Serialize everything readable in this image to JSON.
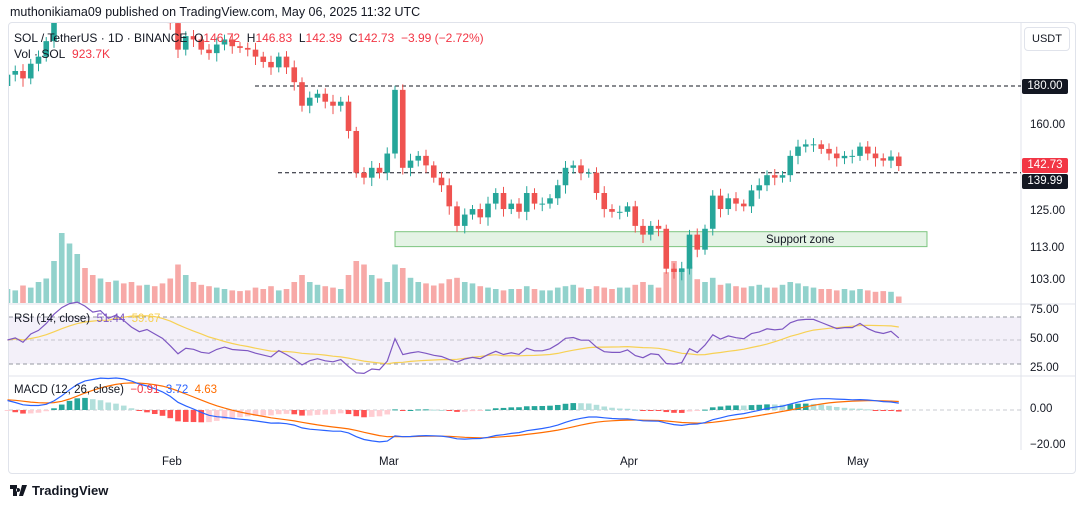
{
  "header": {
    "published": "muthonikiama09 published on TradingView.com, May 06, 2025 11:32 UTC"
  },
  "legend": {
    "symbol": "SOL / TetherUS · 1D · BINANCE",
    "o_label": "O",
    "o": "146.72",
    "h_label": "H",
    "h": "146.83",
    "l_label": "L",
    "l": "142.39",
    "c_label": "C",
    "c": "142.73",
    "change": "−3.99 (−2.72%)",
    "vol_label": "Vol · SOL",
    "vol": "923.7K"
  },
  "currency": "USDT",
  "price_axis": [
    "180.00",
    "160.00",
    "125.00",
    "113.00",
    "103.00"
  ],
  "price_tags": {
    "last": "142.73",
    "level": "139.99",
    "resistance": "180.00"
  },
  "annotation": {
    "support_label": "Support zone"
  },
  "rsi": {
    "label": "RSI (14, close)",
    "value": "51.44",
    "ma": "59.67",
    "axis": [
      "75.00",
      "50.00",
      "25.00"
    ]
  },
  "macd": {
    "label": "MACD (12, 26, close)",
    "hist": "−0.91",
    "macd": "3.72",
    "signal": "4.63",
    "axis": [
      "0.00",
      "−20.00"
    ]
  },
  "time_axis": [
    "Feb",
    "Mar",
    "Apr",
    "May"
  ],
  "footer": {
    "brand": "TradingView"
  },
  "colors": {
    "up": "#26a69a",
    "down": "#ef5350",
    "rsi": "#7e57c2",
    "rsi_ma": "#f7d154",
    "macd": "#2962ff",
    "signal": "#ff6d00"
  },
  "chart_data": {
    "type": "candlestick",
    "start_date": "2025-01-11",
    "end_date": "2025-05-06",
    "closes": [
      186,
      188,
      184,
      192,
      196,
      205,
      222,
      240,
      255,
      262,
      258,
      252,
      256,
      248,
      256,
      250,
      242,
      236,
      240,
      234,
      228,
      216,
      200,
      208,
      206,
      200,
      198,
      203,
      206,
      202,
      201,
      200,
      196,
      193,
      190,
      196,
      190,
      182,
      170,
      174,
      176,
      172,
      170,
      172,
      158,
      140,
      138,
      142,
      140,
      148,
      178,
      142,
      145,
      147,
      143,
      138,
      135,
      127,
      120,
      124,
      126,
      123,
      128,
      132,
      126,
      128,
      125,
      132,
      128,
      128,
      130,
      135,
      142,
      143,
      140,
      140,
      132,
      126,
      125,
      125,
      127,
      120,
      117,
      120,
      119,
      106,
      105,
      106,
      117,
      112,
      119,
      131,
      126,
      130,
      128,
      127,
      133,
      135,
      139,
      138,
      139,
      147,
      151,
      152,
      152,
      150,
      148,
      146,
      147,
      147,
      151,
      148,
      146,
      145,
      146.72,
      142.73
    ],
    "volume_millions": [
      2,
      1.8,
      2.5,
      2.2,
      3,
      3.5,
      6,
      10,
      8.5,
      7,
      5,
      4,
      3.5,
      3,
      3.2,
      2.8,
      3,
      2.5,
      2.6,
      2.4,
      2.8,
      3.5,
      5.5,
      4,
      3,
      2.6,
      2.4,
      2.2,
      2,
      1.8,
      1.7,
      1.8,
      2.2,
      2,
      2.4,
      1.8,
      2,
      3,
      4,
      3,
      2.6,
      2.4,
      2.2,
      2,
      4,
      6,
      5.5,
      4,
      3.5,
      3,
      5.5,
      5,
      3.6,
      3,
      2.8,
      2.5,
      2.8,
      3.4,
      3.6,
      3,
      2.8,
      2.4,
      2.2,
      2,
      1.8,
      2,
      2,
      2.4,
      2,
      1.8,
      1.8,
      2.2,
      2.4,
      2.6,
      2.2,
      2,
      2.4,
      2.2,
      2,
      2.2,
      2.2,
      2.6,
      3,
      2.6,
      2.2,
      4.4,
      6,
      5,
      5.2,
      3.4,
      3,
      3.6,
      2.6,
      2.8,
      2.4,
      2.2,
      2.4,
      2.6,
      2.2,
      2.2,
      2.6,
      3,
      2.8,
      2.4,
      2.2,
      2,
      2,
      1.8,
      2,
      1.8,
      2,
      1.8,
      1.6,
      1.7,
      1.6,
      0.9237
    ],
    "horizontal_levels": [
      180,
      139.99
    ],
    "support_zone": [
      113,
      118
    ],
    "price_scale": "log"
  }
}
